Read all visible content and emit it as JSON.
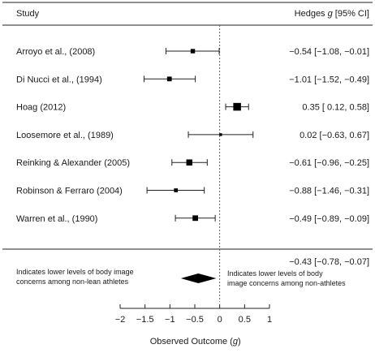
{
  "chart_data": {
    "type": "forest",
    "title": "",
    "header_study": "Study",
    "header_effect": "Hedges g [95% CI]",
    "header_effect_italic": "g",
    "xlabel": "Observed Outcome (g)",
    "xlim": [
      -2,
      1
    ],
    "x_ticks": [
      -2,
      -1.5,
      -1,
      -0.5,
      0,
      0.5,
      1
    ],
    "x_tick_labels": [
      "−2",
      "−1.5",
      "−1",
      "−0.5",
      "0",
      "0.5",
      "1"
    ],
    "null_line": 0,
    "studies": [
      {
        "study": "Arroyo et al., (2008)",
        "g": -0.54,
        "lower": -1.08,
        "upper": -0.01,
        "label": "−0.54 [−1.08, −0.01]",
        "weight": 1.0
      },
      {
        "study": "Di Nucci et al., (1994)",
        "g": -1.01,
        "lower": -1.52,
        "upper": -0.49,
        "label": "−1.01 [−1.52, −0.49]",
        "weight": 1.1
      },
      {
        "study": "Hoag (2012)",
        "g": 0.35,
        "lower": 0.12,
        "upper": 0.58,
        "label": "0.35 [ 0.12,  0.58]",
        "weight": 2.2
      },
      {
        "study": "Loosemore et al., (1989)",
        "g": 0.02,
        "lower": -0.63,
        "upper": 0.67,
        "label": "0.02 [−0.63,  0.67]",
        "weight": 0.4
      },
      {
        "study": "Reinking & Alexander (2005)",
        "g": -0.61,
        "lower": -0.96,
        "upper": -0.25,
        "label": "−0.61 [−0.96, −0.25]",
        "weight": 1.6
      },
      {
        "study": "Robinson & Ferraro (2004)",
        "g": -0.88,
        "lower": -1.46,
        "upper": -0.31,
        "label": "−0.88 [−1.46, −0.31]",
        "weight": 0.8
      },
      {
        "study": "Warren et al., (1990)",
        "g": -0.49,
        "lower": -0.89,
        "upper": -0.09,
        "label": "−0.49 [−0.89, −0.09]",
        "weight": 1.4
      }
    ],
    "summary": {
      "g": -0.43,
      "lower": -0.78,
      "upper": -0.07,
      "label": "−0.43 [−0.78, −0.07]"
    },
    "annotation_left": [
      "Indicates lower levels of body image",
      "concerns among non-lean athletes"
    ],
    "annotation_right": [
      "Indicates lower levels of body",
      "image concerns among non-athletes"
    ]
  }
}
